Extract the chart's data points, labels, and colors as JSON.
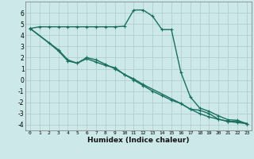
{
  "xlabel": "Humidex (Indice chaleur)",
  "background_color": "#cce8e8",
  "grid_color": "#aacccc",
  "line_color": "#1a7060",
  "xlim": [
    -0.5,
    23.5
  ],
  "ylim": [
    -4.5,
    7.0
  ],
  "yticks": [
    -4,
    -3,
    -2,
    -1,
    0,
    1,
    2,
    3,
    4,
    5,
    6
  ],
  "xticks": [
    0,
    1,
    2,
    3,
    4,
    5,
    6,
    7,
    8,
    9,
    10,
    11,
    12,
    13,
    14,
    15,
    16,
    17,
    18,
    19,
    20,
    21,
    22,
    23
  ],
  "line1_x": [
    0,
    1,
    2,
    3,
    4,
    5,
    6,
    7,
    8,
    9,
    10,
    11,
    12,
    13,
    14,
    15,
    16,
    17,
    18,
    19,
    20,
    21,
    22,
    23
  ],
  "line1_y": [
    4.6,
    4.75,
    4.75,
    4.75,
    4.75,
    4.75,
    4.75,
    4.75,
    4.75,
    4.75,
    4.8,
    6.25,
    6.25,
    5.7,
    4.5,
    4.5,
    0.7,
    -1.5,
    -2.5,
    -2.8,
    -3.2,
    -3.55,
    -3.6,
    -3.9
  ],
  "line2_x": [
    0,
    2,
    3,
    4,
    5,
    6,
    7,
    8,
    9,
    10,
    11,
    12,
    13,
    14,
    15,
    16,
    17,
    18,
    19,
    20,
    21,
    22,
    23
  ],
  "line2_y": [
    4.6,
    3.3,
    2.6,
    1.7,
    1.5,
    2.0,
    1.8,
    1.4,
    1.0,
    0.5,
    0.0,
    -0.5,
    -1.0,
    -1.4,
    -1.8,
    -2.1,
    -2.6,
    -3.0,
    -3.3,
    -3.5,
    -3.7,
    -3.8,
    -3.9
  ],
  "line3_x": [
    0,
    3,
    4,
    5,
    6,
    7,
    8,
    9,
    10,
    11,
    12,
    16,
    17,
    18,
    19,
    20,
    21,
    22,
    23
  ],
  "line3_y": [
    4.6,
    2.7,
    1.8,
    1.5,
    1.9,
    1.6,
    1.3,
    1.1,
    0.5,
    0.1,
    -0.4,
    -2.1,
    -2.6,
    -2.7,
    -3.0,
    -3.5,
    -3.7,
    -3.7,
    -3.9
  ]
}
